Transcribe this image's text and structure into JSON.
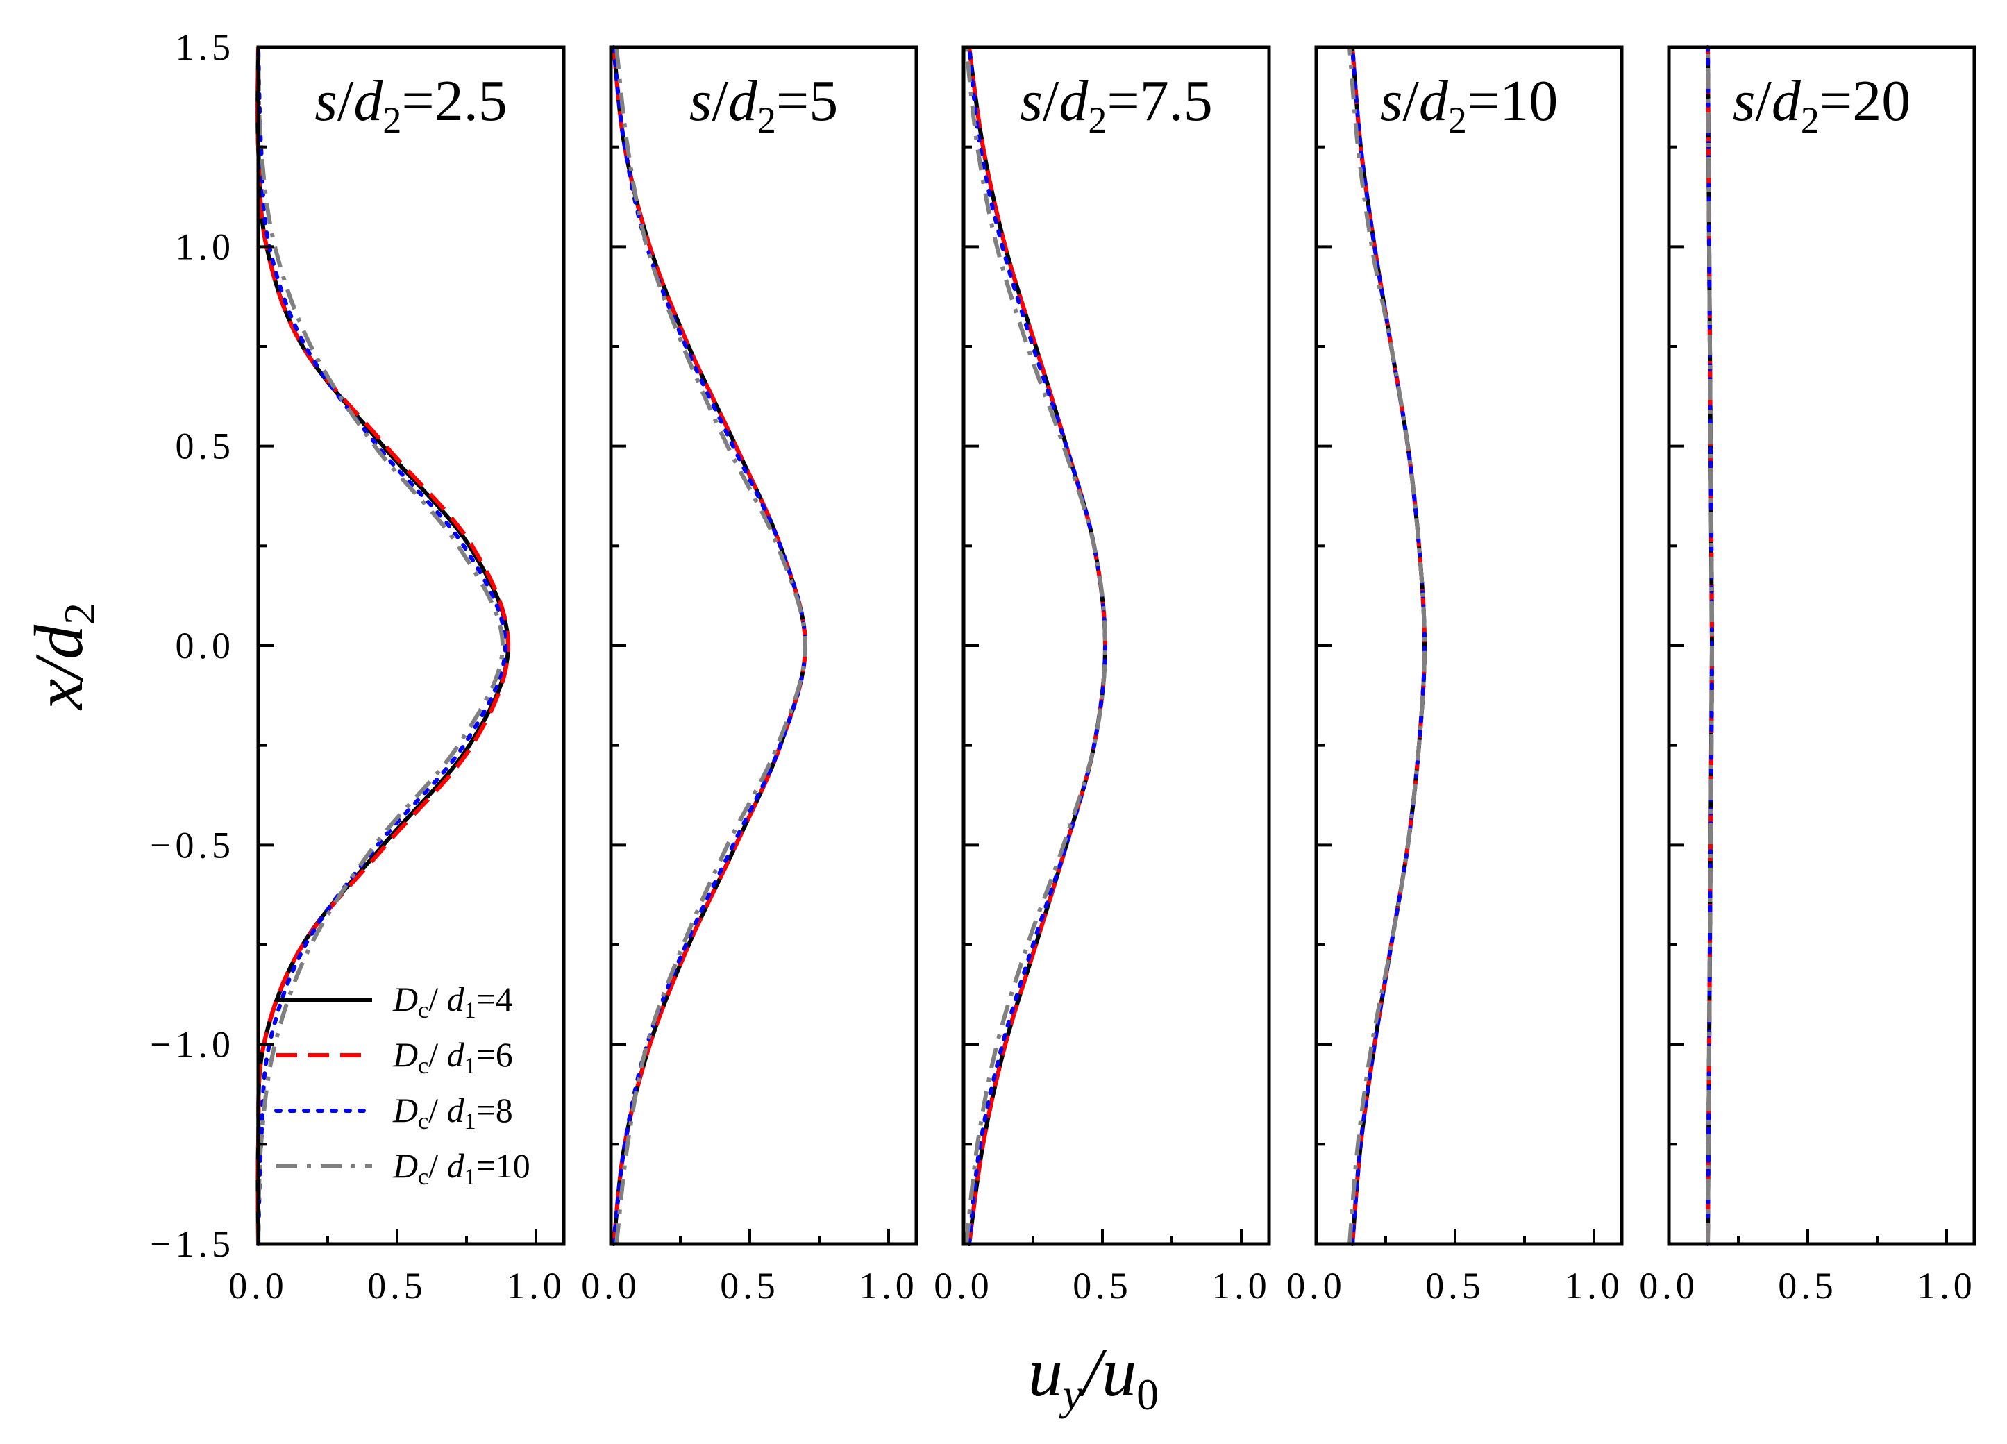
{
  "chart_data": {
    "type": "line",
    "xlabel": {
      "base": "u",
      "sub": "y",
      "mid": "/",
      "base2": "u",
      "sub2": "0"
    },
    "ylabel": {
      "base": "x",
      "mid": "/",
      "base2": "d",
      "sub2": "2"
    },
    "xlim": [
      0,
      1.1
    ],
    "ylim": [
      -1.5,
      1.5
    ],
    "x_tick_labels": [
      "0.0",
      "0.5",
      "1.0"
    ],
    "y_ticks": [
      {
        "value": 1.5,
        "label": "1.5"
      },
      {
        "value": 1.0,
        "label": "1.0"
      },
      {
        "value": 0.5,
        "label": "0.5"
      },
      {
        "value": 0.0,
        "label": "0.0"
      },
      {
        "value": -0.5,
        "label": "−0.5"
      },
      {
        "value": -1.0,
        "label": "−1.0"
      },
      {
        "value": -1.5,
        "label": "−1.5"
      }
    ],
    "legend": {
      "placement": "bottom-left of first panel",
      "entries": [
        {
          "a": "D",
          "asub": "c",
          "mid": "/ ",
          "b": "d",
          "bsub": "1",
          "val": "=4",
          "color": "#000000",
          "dash": "solid"
        },
        {
          "a": "D",
          "asub": "c",
          "mid": "/ ",
          "b": "d",
          "bsub": "1",
          "val": "=6",
          "color": "#ff0000",
          "dash": "dashed"
        },
        {
          "a": "D",
          "asub": "c",
          "mid": "/ ",
          "b": "d",
          "bsub": "1",
          "val": "=8",
          "color": "#0000ff",
          "dash": "dotted"
        },
        {
          "a": "D",
          "asub": "c",
          "mid": "/ ",
          "b": "d",
          "bsub": "1",
          "val": "=10",
          "color": "#808080",
          "dash": "dashdot"
        }
      ]
    },
    "panels": [
      {
        "title": {
          "a": "s",
          "mid": "/",
          "b": "d",
          "bsub": "2",
          "val": "=2.5"
        },
        "series_labels": [
          "Dc/d1=4",
          "Dc/d1=6",
          "Dc/d1=8",
          "Dc/d1=10"
        ],
        "series": [
          {
            "color": "#000000",
            "dash": "solid",
            "y": [
              -1.5,
              -1.25,
              -1.0,
              -0.75,
              -0.5,
              -0.25,
              0,
              0.25,
              0.5,
              0.75,
              1.0,
              1.25,
              1.5
            ],
            "x": [
              0.0,
              0.0,
              0.02,
              0.16,
              0.45,
              0.76,
              0.9,
              0.76,
              0.45,
              0.16,
              0.03,
              0.0,
              0.0
            ]
          },
          {
            "color": "#ff0000",
            "dash": "dashed",
            "y": [
              -1.5,
              -1.25,
              -1.0,
              -0.75,
              -0.5,
              -0.25,
              0,
              0.25,
              0.5,
              0.75,
              1.0,
              1.25,
              1.5
            ],
            "x": [
              0.0,
              0.0,
              0.02,
              0.16,
              0.46,
              0.77,
              0.9,
              0.77,
              0.46,
              0.16,
              0.03,
              0.0,
              0.0
            ]
          },
          {
            "color": "#0000ff",
            "dash": "dotted",
            "y": [
              -1.5,
              -1.25,
              -1.0,
              -0.75,
              -0.5,
              -0.25,
              0,
              0.25,
              0.5,
              0.75,
              1.0,
              1.25,
              1.5
            ],
            "x": [
              0.0,
              0.01,
              0.04,
              0.17,
              0.43,
              0.74,
              0.89,
              0.74,
              0.43,
              0.17,
              0.04,
              0.01,
              0.0
            ]
          },
          {
            "color": "#808080",
            "dash": "dashdot",
            "y": [
              -1.5,
              -1.25,
              -1.0,
              -0.75,
              -0.5,
              -0.25,
              0,
              0.25,
              0.5,
              0.75,
              1.0,
              1.25,
              1.5
            ],
            "x": [
              0.0,
              0.01,
              0.06,
              0.19,
              0.42,
              0.72,
              0.88,
              0.72,
              0.42,
              0.19,
              0.06,
              0.01,
              0.0
            ]
          }
        ]
      },
      {
        "title": {
          "a": "s",
          "mid": "/",
          "b": "d",
          "bsub": "2",
          "val": "=5"
        },
        "series_labels": [
          "Dc/d1=4",
          "Dc/d1=6",
          "Dc/d1=8",
          "Dc/d1=10"
        ],
        "series": [
          {
            "color": "#000000",
            "dash": "solid",
            "y": [
              -1.5,
              -1.25,
              -1.0,
              -0.75,
              -0.5,
              -0.25,
              0,
              0.25,
              0.5,
              0.75,
              1.0,
              1.25,
              1.5
            ],
            "x": [
              0.01,
              0.05,
              0.14,
              0.28,
              0.45,
              0.61,
              0.7,
              0.61,
              0.45,
              0.28,
              0.14,
              0.05,
              0.01
            ]
          },
          {
            "color": "#ff0000",
            "dash": "dashed",
            "y": [
              -1.5,
              -1.25,
              -1.0,
              -0.75,
              -0.5,
              -0.25,
              0,
              0.25,
              0.5,
              0.75,
              1.0,
              1.25,
              1.5
            ],
            "x": [
              0.01,
              0.05,
              0.14,
              0.28,
              0.45,
              0.61,
              0.7,
              0.61,
              0.45,
              0.28,
              0.14,
              0.05,
              0.01
            ]
          },
          {
            "color": "#0000ff",
            "dash": "dotted",
            "y": [
              -1.5,
              -1.25,
              -1.0,
              -0.75,
              -0.5,
              -0.25,
              0,
              0.25,
              0.5,
              0.75,
              1.0,
              1.25,
              1.5
            ],
            "x": [
              0.01,
              0.05,
              0.13,
              0.27,
              0.44,
              0.61,
              0.7,
              0.61,
              0.44,
              0.27,
              0.13,
              0.05,
              0.01
            ]
          },
          {
            "color": "#808080",
            "dash": "dashdot",
            "y": [
              -1.5,
              -1.25,
              -1.0,
              -0.75,
              -0.5,
              -0.25,
              0,
              0.25,
              0.5,
              0.75,
              1.0,
              1.25,
              1.5
            ],
            "x": [
              0.02,
              0.06,
              0.13,
              0.26,
              0.42,
              0.6,
              0.7,
              0.6,
              0.42,
              0.26,
              0.13,
              0.06,
              0.02
            ]
          }
        ]
      },
      {
        "title": {
          "a": "s",
          "mid": "/",
          "b": "d",
          "bsub": "2",
          "val": "=7.5"
        },
        "series_labels": [
          "Dc/d1=4",
          "Dc/d1=6",
          "Dc/d1=8",
          "Dc/d1=10"
        ],
        "series": [
          {
            "color": "#000000",
            "dash": "solid",
            "y": [
              -1.5,
              -1.25,
              -1.0,
              -0.75,
              -0.5,
              -0.25,
              0,
              0.25,
              0.5,
              0.75,
              1.0,
              1.25,
              1.5
            ],
            "x": [
              0.02,
              0.07,
              0.15,
              0.26,
              0.37,
              0.47,
              0.51,
              0.47,
              0.37,
              0.26,
              0.15,
              0.07,
              0.02
            ]
          },
          {
            "color": "#ff0000",
            "dash": "dashed",
            "y": [
              -1.5,
              -1.25,
              -1.0,
              -0.75,
              -0.5,
              -0.25,
              0,
              0.25,
              0.5,
              0.75,
              1.0,
              1.25,
              1.5
            ],
            "x": [
              0.02,
              0.07,
              0.15,
              0.26,
              0.37,
              0.47,
              0.51,
              0.47,
              0.37,
              0.26,
              0.15,
              0.07,
              0.02
            ]
          },
          {
            "color": "#0000ff",
            "dash": "dotted",
            "y": [
              -1.5,
              -1.25,
              -1.0,
              -0.75,
              -0.5,
              -0.25,
              0,
              0.25,
              0.5,
              0.75,
              1.0,
              1.25,
              1.5
            ],
            "x": [
              0.02,
              0.06,
              0.14,
              0.25,
              0.37,
              0.47,
              0.51,
              0.47,
              0.37,
              0.25,
              0.14,
              0.06,
              0.02
            ]
          },
          {
            "color": "#808080",
            "dash": "dashdot",
            "y": [
              -1.5,
              -1.25,
              -1.0,
              -0.75,
              -0.5,
              -0.25,
              0,
              0.25,
              0.5,
              0.75,
              1.0,
              1.25,
              1.5
            ],
            "x": [
              0.01,
              0.05,
              0.12,
              0.23,
              0.36,
              0.47,
              0.51,
              0.47,
              0.36,
              0.23,
              0.12,
              0.05,
              0.01
            ]
          }
        ]
      },
      {
        "title": {
          "a": "s",
          "mid": "/",
          "b": "d",
          "bsub": "2",
          "val": "=10"
        },
        "series_labels": [
          "Dc/d1=4",
          "Dc/d1=6",
          "Dc/d1=8",
          "Dc/d1=10"
        ],
        "series": [
          {
            "color": "#000000",
            "dash": "solid",
            "y": [
              -1.5,
              -1.25,
              -1.0,
              -0.75,
              -0.5,
              -0.25,
              0,
              0.25,
              0.5,
              0.75,
              1.0,
              1.25,
              1.5
            ],
            "x": [
              0.13,
              0.16,
              0.21,
              0.27,
              0.33,
              0.37,
              0.39,
              0.37,
              0.33,
              0.27,
              0.21,
              0.16,
              0.13
            ]
          },
          {
            "color": "#ff0000",
            "dash": "dashed",
            "y": [
              -1.5,
              -1.25,
              -1.0,
              -0.75,
              -0.5,
              -0.25,
              0,
              0.25,
              0.5,
              0.75,
              1.0,
              1.25,
              1.5
            ],
            "x": [
              0.13,
              0.16,
              0.21,
              0.27,
              0.33,
              0.37,
              0.39,
              0.37,
              0.33,
              0.27,
              0.21,
              0.16,
              0.13
            ]
          },
          {
            "color": "#0000ff",
            "dash": "dotted",
            "y": [
              -1.5,
              -1.25,
              -1.0,
              -0.75,
              -0.5,
              -0.25,
              0,
              0.25,
              0.5,
              0.75,
              1.0,
              1.25,
              1.5
            ],
            "x": [
              0.13,
              0.16,
              0.21,
              0.27,
              0.33,
              0.37,
              0.39,
              0.37,
              0.33,
              0.27,
              0.21,
              0.16,
              0.13
            ]
          },
          {
            "color": "#808080",
            "dash": "dashdot",
            "y": [
              -1.5,
              -1.25,
              -1.0,
              -0.75,
              -0.5,
              -0.25,
              0,
              0.25,
              0.5,
              0.75,
              1.0,
              1.25,
              1.5
            ],
            "x": [
              0.12,
              0.15,
              0.2,
              0.27,
              0.33,
              0.37,
              0.39,
              0.37,
              0.33,
              0.27,
              0.2,
              0.15,
              0.12
            ]
          }
        ]
      },
      {
        "title": {
          "a": "s",
          "mid": "/",
          "b": "d",
          "bsub": "2",
          "val": "=20"
        },
        "series_labels": [
          "Dc/d1=4",
          "Dc/d1=6",
          "Dc/d1=8",
          "Dc/d1=10"
        ],
        "series": [
          {
            "color": "#000000",
            "dash": "solid",
            "y": [
              -1.5,
              -1.0,
              -0.5,
              0,
              0.5,
              1.0,
              1.5
            ],
            "x": [
              0.14,
              0.145,
              0.15,
              0.155,
              0.15,
              0.145,
              0.14
            ]
          },
          {
            "color": "#ff0000",
            "dash": "dashed",
            "y": [
              -1.5,
              -1.0,
              -0.5,
              0,
              0.5,
              1.0,
              1.5
            ],
            "x": [
              0.14,
              0.145,
              0.15,
              0.155,
              0.15,
              0.145,
              0.14
            ]
          },
          {
            "color": "#0000ff",
            "dash": "dotted",
            "y": [
              -1.5,
              -1.0,
              -0.5,
              0,
              0.5,
              1.0,
              1.5
            ],
            "x": [
              0.14,
              0.145,
              0.15,
              0.155,
              0.15,
              0.145,
              0.14
            ]
          },
          {
            "color": "#808080",
            "dash": "dashdot",
            "y": [
              -1.5,
              -1.0,
              -0.5,
              0,
              0.5,
              1.0,
              1.5
            ],
            "x": [
              0.14,
              0.145,
              0.15,
              0.155,
              0.15,
              0.145,
              0.14
            ]
          }
        ]
      }
    ]
  }
}
